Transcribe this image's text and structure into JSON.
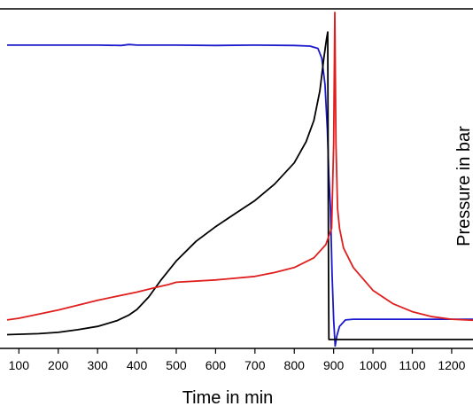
{
  "chart_data": {
    "type": "line",
    "xlabel": "Time in min",
    "y2label": "Pressure in bar",
    "xlim": [
      70,
      1270
    ],
    "x_ticks": [
      "100",
      "200",
      "300",
      "400",
      "500",
      "600",
      "700",
      "800",
      "900",
      "1000",
      "1100",
      "1200"
    ],
    "x_tick_values": [
      100,
      200,
      300,
      400,
      500,
      600,
      700,
      800,
      900,
      1000,
      1100,
      1200
    ],
    "yticks_visible": false,
    "grid": false,
    "y_units_note": "relative 0-1 (axis ticks not visible)",
    "series": [
      {
        "color": "#1a1acc",
        "x": [
          70,
          200,
          300,
          360,
          380,
          400,
          500,
          600,
          700,
          800,
          840,
          860,
          870,
          878,
          884,
          888,
          892,
          896,
          900,
          904,
          908,
          915,
          930,
          950,
          1000,
          1100,
          1200,
          1270
        ],
        "y": [
          0.9,
          0.9,
          0.9,
          0.899,
          0.902,
          0.9,
          0.9,
          0.899,
          0.9,
          0.899,
          0.897,
          0.89,
          0.86,
          0.78,
          0.64,
          0.5,
          0.4,
          0.2,
          0.06,
          -0.02,
          0.01,
          0.04,
          0.06,
          0.062,
          0.062,
          0.062,
          0.062,
          0.062
        ]
      },
      {
        "color": "#000000",
        "x": [
          70,
          150,
          200,
          250,
          300,
          350,
          380,
          400,
          430,
          460,
          500,
          550,
          600,
          650,
          700,
          750,
          800,
          830,
          850,
          865,
          875,
          882,
          885,
          886,
          887,
          888,
          900,
          1000,
          1100,
          1200,
          1270
        ],
        "y": [
          0.015,
          0.018,
          0.022,
          0.03,
          0.04,
          0.058,
          0.075,
          0.092,
          0.13,
          0.18,
          0.24,
          0.3,
          0.345,
          0.385,
          0.425,
          0.475,
          0.54,
          0.605,
          0.67,
          0.76,
          0.86,
          0.92,
          0.94,
          0.6,
          0.2,
          0.0,
          0.0,
          0.0,
          0.0,
          0.0,
          0.0
        ]
      },
      {
        "color": "#e01e1e",
        "x": [
          70,
          100,
          200,
          300,
          400,
          450,
          480,
          500,
          600,
          700,
          750,
          800,
          850,
          880,
          895,
          900,
          903,
          906,
          910,
          915,
          925,
          950,
          1000,
          1050,
          1100,
          1150,
          1200,
          1270
        ],
        "y": [
          0.06,
          0.065,
          0.09,
          0.12,
          0.145,
          0.16,
          0.168,
          0.175,
          0.182,
          0.193,
          0.205,
          0.22,
          0.25,
          0.29,
          0.34,
          0.6,
          1.0,
          0.6,
          0.4,
          0.34,
          0.28,
          0.22,
          0.15,
          0.11,
          0.085,
          0.07,
          0.062,
          0.058
        ]
      }
    ]
  }
}
